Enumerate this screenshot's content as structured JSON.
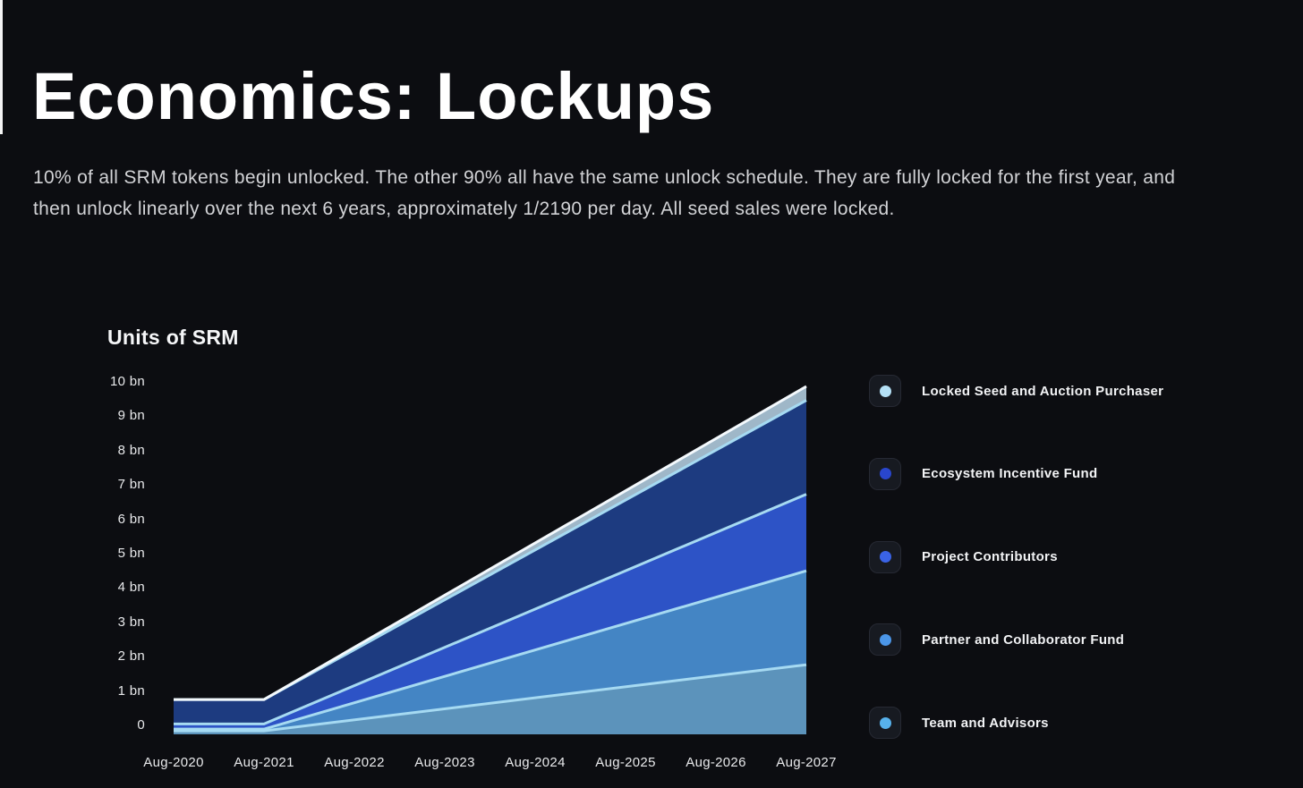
{
  "page": {
    "title": "Economics: Lockups",
    "description": "10% of all SRM tokens begin unlocked. The other 90% all have the same unlock schedule. They are fully locked for the first year, and then unlock linearly over the next 6 years, approximately 1/2190 per day. All seed sales were locked.",
    "background_color": "#0c0d11"
  },
  "chart_data": {
    "type": "area",
    "stacked": true,
    "title": "Units of SRM",
    "xlabel": "",
    "ylabel": "Units of SRM",
    "x_categories": [
      "Aug-2020",
      "Aug-2021",
      "Aug-2022",
      "Aug-2023",
      "Aug-2024",
      "Aug-2025",
      "Aug-2026",
      "Aug-2027"
    ],
    "y_tick_labels": [
      "10 bn",
      "9 bn",
      "8 bn",
      "7 bn",
      "6 bn",
      "5 bn",
      "4 bn",
      "3 bn",
      "2 bn",
      "1 bn",
      "0"
    ],
    "ylim_bn": [
      0,
      10
    ],
    "total_supply_bn": 10,
    "grid": false,
    "legend_position": "right",
    "breakpoint_x_categories": [
      "Aug-2020",
      "Aug-2021",
      "Aug-2027"
    ],
    "breakpoint_years": [
      2020,
      2021,
      2027
    ],
    "schedule_note": "flat (locked) from Aug-2020 to Aug-2021, then linear unlock to Aug-2027",
    "series": [
      {
        "name": "Locked Seed and Auction Purchaser",
        "fill": "#9fb7c8",
        "edge_stroke": "#f4f9fd",
        "values_bn_at_breakpoints": [
          0,
          0,
          0.4
        ]
      },
      {
        "name": "Ecosystem Incentive Fund",
        "fill": "#1d3b80",
        "edge_stroke": "#a6daf2",
        "values_bn_at_breakpoints": [
          0.7,
          0.7,
          2.7
        ]
      },
      {
        "name": "Project Contributors",
        "fill": "#2d53c6",
        "edge_stroke": "#a6daf2",
        "values_bn_at_breakpoints": [
          0.15,
          0.15,
          2.2
        ]
      },
      {
        "name": "Partner and Collaborator Fund",
        "fill": "#4485c4",
        "edge_stroke": "#a6daf2",
        "values_bn_at_breakpoints": [
          0.05,
          0.05,
          2.7
        ]
      },
      {
        "name": "Team and Advisors",
        "fill": "#5c93bb",
        "edge_stroke": "#a6daf2",
        "values_bn_at_breakpoints": [
          0.1,
          0.1,
          2.0
        ]
      }
    ],
    "series_order_note": "listed top-of-stack first; stacking accumulates from last item (bottom) upward"
  },
  "legend": {
    "items": [
      {
        "label": "Locked Seed and Auction Purchaser",
        "dot_color": "#b4e0f5"
      },
      {
        "label": "Ecosystem Incentive Fund",
        "dot_color": "#2946cd"
      },
      {
        "label": "Project Contributors",
        "dot_color": "#3a63e6"
      },
      {
        "label": "Partner and Collaborator Fund",
        "dot_color": "#4b96e8"
      },
      {
        "label": "Team and Advisors",
        "dot_color": "#57b2ec"
      }
    ]
  }
}
